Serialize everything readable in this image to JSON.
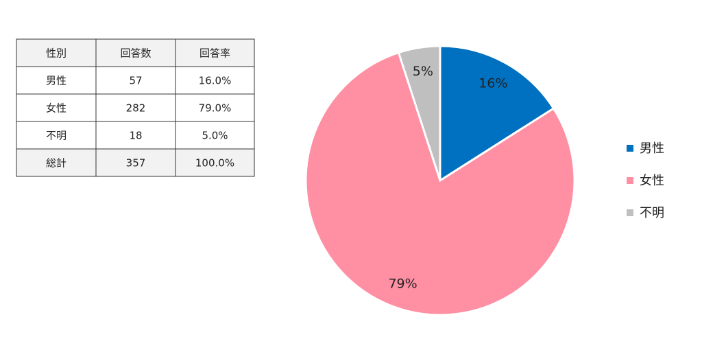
{
  "table": {
    "header": [
      "性別",
      "回答数",
      "回答率"
    ],
    "rows": [
      [
        "男性",
        "57",
        "16.0%"
      ],
      [
        "女性",
        "282",
        "79.0%"
      ],
      [
        "不明",
        "18",
        "5.0%"
      ],
      [
        "総計",
        "357",
        "100.0%"
      ]
    ]
  },
  "chart_data": {
    "type": "pie",
    "categories": [
      "男性",
      "女性",
      "不明"
    ],
    "values": [
      16,
      79,
      5
    ],
    "value_labels": [
      "16%",
      "79%",
      "5%"
    ],
    "colors": [
      "#0070c0",
      "#ff8fa3",
      "#bfbfbf"
    ],
    "legend": "right"
  }
}
